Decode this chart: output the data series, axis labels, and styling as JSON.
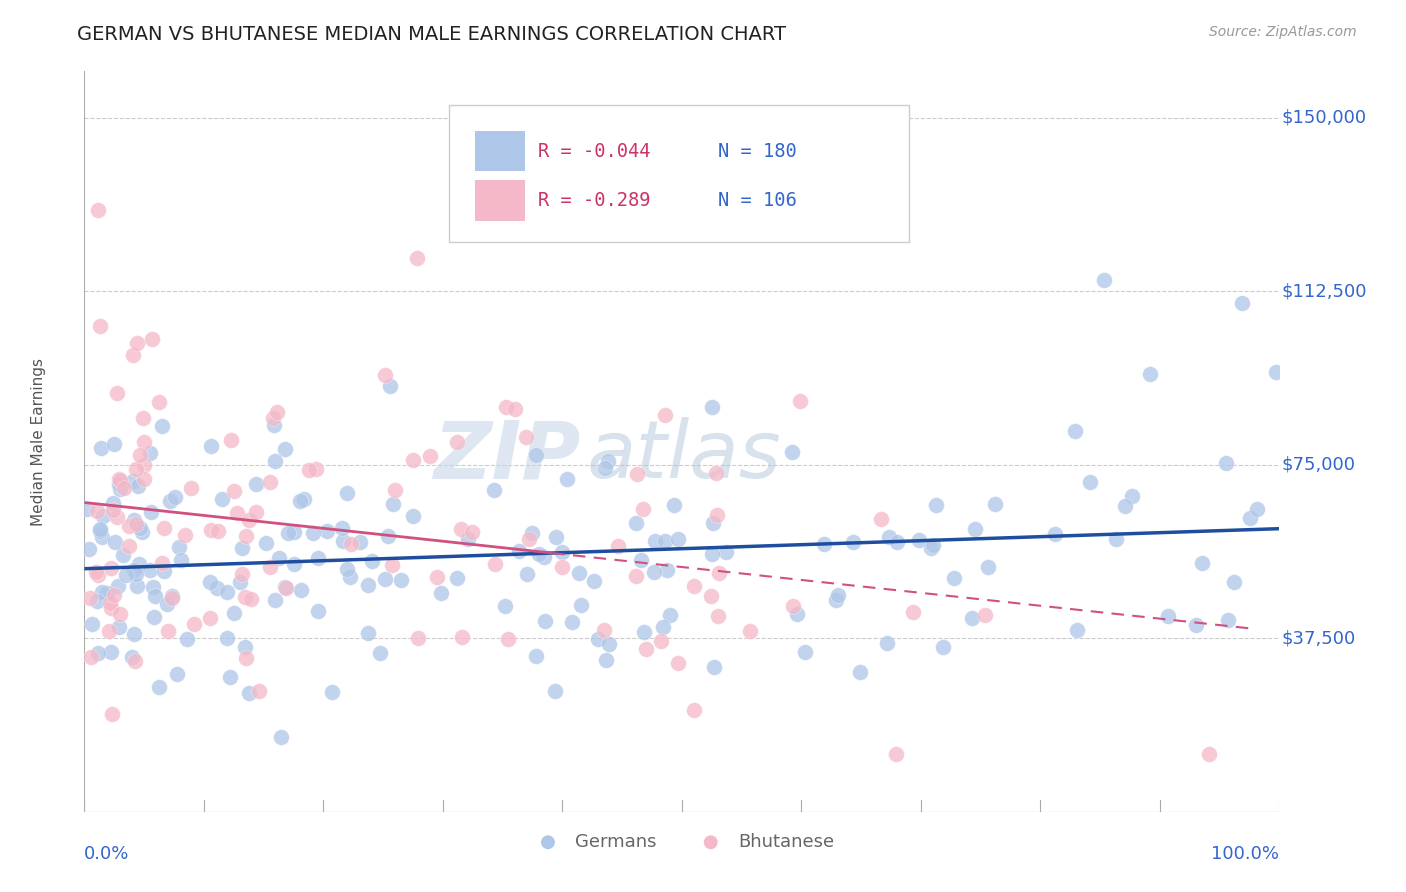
{
  "title": "GERMAN VS BHUTANESE MEDIAN MALE EARNINGS CORRELATION CHART",
  "source_text": "Source: ZipAtlas.com",
  "ylabel": "Median Male Earnings",
  "xlim": [
    0,
    1
  ],
  "ylim": [
    0,
    160000
  ],
  "yticks": [
    0,
    37500,
    75000,
    112500,
    150000
  ],
  "ytick_labels": [
    "",
    "$37,500",
    "$75,000",
    "$112,500",
    "$150,000"
  ],
  "xtick_labels": [
    "0.0%",
    "100.0%"
  ],
  "german_R": -0.044,
  "german_N": 180,
  "bhutanese_R": -0.289,
  "bhutanese_N": 106,
  "german_color": "#aec6e8",
  "german_line_color": "#1f4e9e",
  "bhutanese_color": "#f4b8c8",
  "bhutanese_line_color": "#d05080",
  "watermark_zip": "ZIP",
  "watermark_atlas": "atlas",
  "title_color": "#222222",
  "axis_label_color": "#3366cc",
  "legend_R_color": "#cc3366",
  "legend_N_color": "#3366cc",
  "background_color": "#ffffff",
  "grid_color": "#cccccc",
  "title_fontsize": 14,
  "axis_label_fontsize": 11
}
